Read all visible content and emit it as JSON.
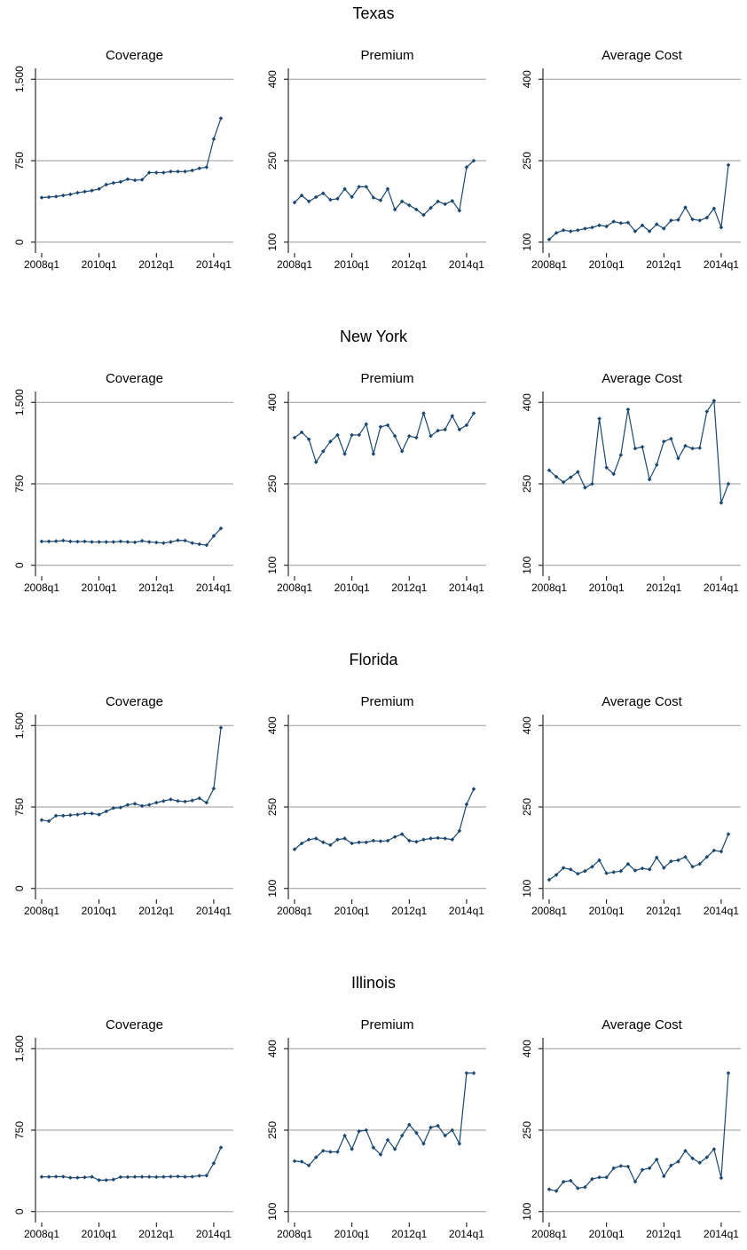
{
  "chart_data": [
    {
      "type": "line",
      "suptitle": "Texas",
      "title": "Coverage",
      "color": "#1a476f",
      "x": [
        "2008q1",
        "2008q2",
        "2008q3",
        "2008q4",
        "2009q1",
        "2009q2",
        "2009q3",
        "2009q4",
        "2010q1",
        "2010q2",
        "2010q3",
        "2010q4",
        "2011q1",
        "2011q2",
        "2011q3",
        "2011q4",
        "2012q1",
        "2012q2",
        "2012q3",
        "2012q4",
        "2013q1",
        "2013q2",
        "2013q3",
        "2013q4",
        "2014q1",
        "2014q2"
      ],
      "values": [
        410,
        415,
        420,
        430,
        440,
        455,
        465,
        475,
        490,
        530,
        545,
        555,
        580,
        570,
        575,
        640,
        640,
        640,
        650,
        650,
        650,
        660,
        680,
        690,
        950,
        1140
      ],
      "ylim": [
        -100,
        1600
      ],
      "yticks": [
        0,
        750,
        {
          "value": 1500,
          "label": "1,500"
        }
      ],
      "xticks": [
        "2008q1",
        "2010q1",
        "2012q1",
        "2014q1"
      ],
      "grid": true
    },
    {
      "type": "line",
      "title": "Premium",
      "color": "#1a476f",
      "x": [
        "2008q1",
        "2008q2",
        "2008q3",
        "2008q4",
        "2009q1",
        "2009q2",
        "2009q3",
        "2009q4",
        "2010q1",
        "2010q2",
        "2010q3",
        "2010q4",
        "2011q1",
        "2011q2",
        "2011q3",
        "2011q4",
        "2012q1",
        "2012q2",
        "2012q3",
        "2012q4",
        "2013q1",
        "2013q2",
        "2013q3",
        "2013q4",
        "2014q1",
        "2014q2"
      ],
      "values": [
        173,
        186,
        175,
        183,
        190,
        178,
        180,
        198,
        183,
        202,
        202,
        182,
        177,
        198,
        160,
        175,
        168,
        160,
        150,
        163,
        175,
        170,
        176,
        158,
        238,
        250
      ],
      "ylim": [
        80,
        420
      ],
      "yticks": [
        100,
        250,
        400
      ],
      "xticks": [
        "2008q1",
        "2010q1",
        "2012q1",
        "2014q1"
      ],
      "grid": true
    },
    {
      "type": "line",
      "title": "Average Cost",
      "color": "#1a476f",
      "x": [
        "2008q1",
        "2008q2",
        "2008q3",
        "2008q4",
        "2009q1",
        "2009q2",
        "2009q3",
        "2009q4",
        "2010q1",
        "2010q2",
        "2010q3",
        "2010q4",
        "2011q1",
        "2011q2",
        "2011q3",
        "2011q4",
        "2012q1",
        "2012q2",
        "2012q3",
        "2012q4",
        "2013q1",
        "2013q2",
        "2013q3",
        "2013q4",
        "2014q1",
        "2014q2"
      ],
      "values": [
        105,
        117,
        122,
        120,
        122,
        125,
        127,
        131,
        129,
        138,
        135,
        136,
        120,
        131,
        120,
        133,
        125,
        140,
        141,
        164,
        142,
        140,
        145,
        162,
        127,
        242
      ],
      "ylim": [
        80,
        420
      ],
      "yticks": [
        100,
        250,
        400
      ],
      "xticks": [
        "2008q1",
        "2010q1",
        "2012q1",
        "2014q1"
      ],
      "grid": true
    },
    {
      "type": "line",
      "suptitle": "New York",
      "title": "Coverage",
      "color": "#1a476f",
      "x": [
        "2008q1",
        "2008q2",
        "2008q3",
        "2008q4",
        "2009q1",
        "2009q2",
        "2009q3",
        "2009q4",
        "2010q1",
        "2010q2",
        "2010q3",
        "2010q4",
        "2011q1",
        "2011q2",
        "2011q3",
        "2011q4",
        "2012q1",
        "2012q2",
        "2012q3",
        "2012q4",
        "2013q1",
        "2013q2",
        "2013q3",
        "2013q4",
        "2014q1",
        "2014q2"
      ],
      "values": [
        220,
        220,
        222,
        228,
        220,
        218,
        220,
        215,
        215,
        215,
        215,
        220,
        215,
        212,
        225,
        215,
        210,
        205,
        215,
        230,
        228,
        205,
        195,
        185,
        270,
        340
      ],
      "ylim": [
        -100,
        1600
      ],
      "yticks": [
        0,
        750,
        {
          "value": 1500,
          "label": "1,500"
        }
      ],
      "xticks": [
        "2008q1",
        "2010q1",
        "2012q1",
        "2014q1"
      ],
      "grid": true
    },
    {
      "type": "line",
      "title": "Premium",
      "color": "#1a476f",
      "x": [
        "2008q1",
        "2008q2",
        "2008q3",
        "2008q4",
        "2009q1",
        "2009q2",
        "2009q3",
        "2009q4",
        "2010q1",
        "2010q2",
        "2010q3",
        "2010q4",
        "2011q1",
        "2011q2",
        "2011q3",
        "2011q4",
        "2012q1",
        "2012q2",
        "2012q3",
        "2012q4",
        "2013q1",
        "2013q2",
        "2013q3",
        "2013q4",
        "2014q1",
        "2014q2"
      ],
      "values": [
        335,
        345,
        332,
        290,
        310,
        328,
        340,
        305,
        340,
        340,
        360,
        305,
        355,
        358,
        338,
        310,
        338,
        335,
        380,
        338,
        348,
        350,
        375,
        350,
        358,
        380
      ],
      "ylim": [
        80,
        420
      ],
      "yticks": [
        100,
        250,
        400
      ],
      "xticks": [
        "2008q1",
        "2010q1",
        "2012q1",
        "2014q1"
      ],
      "grid": true
    },
    {
      "type": "line",
      "title": "Average Cost",
      "color": "#1a476f",
      "x": [
        "2008q1",
        "2008q2",
        "2008q3",
        "2008q4",
        "2009q1",
        "2009q2",
        "2009q3",
        "2009q4",
        "2010q1",
        "2010q2",
        "2010q3",
        "2010q4",
        "2011q1",
        "2011q2",
        "2011q3",
        "2011q4",
        "2012q1",
        "2012q2",
        "2012q3",
        "2012q4",
        "2013q1",
        "2013q2",
        "2013q3",
        "2013q4",
        "2014q1",
        "2014q2"
      ],
      "values": [
        275,
        263,
        253,
        262,
        272,
        243,
        250,
        370,
        280,
        268,
        303,
        387,
        315,
        318,
        258,
        285,
        328,
        333,
        297,
        320,
        315,
        316,
        383,
        403,
        215,
        250
      ],
      "ylim": [
        80,
        420
      ],
      "yticks": [
        100,
        250,
        400
      ],
      "xticks": [
        "2008q1",
        "2010q1",
        "2012q1",
        "2014q1"
      ],
      "grid": true
    },
    {
      "type": "line",
      "suptitle": "Florida",
      "title": "Coverage",
      "color": "#1a476f",
      "x": [
        "2008q1",
        "2008q2",
        "2008q3",
        "2008q4",
        "2009q1",
        "2009q2",
        "2009q3",
        "2009q4",
        "2010q1",
        "2010q2",
        "2010q3",
        "2010q4",
        "2011q1",
        "2011q2",
        "2011q3",
        "2011q4",
        "2012q1",
        "2012q2",
        "2012q3",
        "2012q4",
        "2013q1",
        "2013q2",
        "2013q3",
        "2013q4",
        "2014q1",
        "2014q2"
      ],
      "values": [
        630,
        620,
        670,
        670,
        675,
        680,
        690,
        690,
        680,
        710,
        740,
        745,
        770,
        780,
        760,
        770,
        790,
        805,
        820,
        805,
        800,
        810,
        830,
        790,
        920,
        1480
      ],
      "ylim": [
        -100,
        1600
      ],
      "yticks": [
        0,
        750,
        {
          "value": 1500,
          "label": "1,500"
        }
      ],
      "xticks": [
        "2008q1",
        "2010q1",
        "2012q1",
        "2014q1"
      ],
      "grid": true
    },
    {
      "type": "line",
      "title": "Premium",
      "color": "#1a476f",
      "x": [
        "2008q1",
        "2008q2",
        "2008q3",
        "2008q4",
        "2009q1",
        "2009q2",
        "2009q3",
        "2009q4",
        "2010q1",
        "2010q2",
        "2010q3",
        "2010q4",
        "2011q1",
        "2011q2",
        "2011q3",
        "2011q4",
        "2012q1",
        "2012q2",
        "2012q3",
        "2012q4",
        "2013q1",
        "2013q2",
        "2013q3",
        "2013q4",
        "2014q1",
        "2014q2"
      ],
      "values": [
        172,
        183,
        190,
        192,
        185,
        180,
        190,
        192,
        183,
        185,
        185,
        188,
        187,
        188,
        195,
        200,
        188,
        186,
        190,
        192,
        193,
        192,
        190,
        206,
        255,
        283
      ],
      "ylim": [
        80,
        420
      ],
      "yticks": [
        100,
        250,
        400
      ],
      "xticks": [
        "2008q1",
        "2010q1",
        "2012q1",
        "2014q1"
      ],
      "grid": true
    },
    {
      "type": "line",
      "title": "Average Cost",
      "color": "#1a476f",
      "x": [
        "2008q1",
        "2008q2",
        "2008q3",
        "2008q4",
        "2009q1",
        "2009q2",
        "2009q3",
        "2009q4",
        "2010q1",
        "2010q2",
        "2010q3",
        "2010q4",
        "2011q1",
        "2011q2",
        "2011q3",
        "2011q4",
        "2012q1",
        "2012q2",
        "2012q3",
        "2012q4",
        "2013q1",
        "2013q2",
        "2013q3",
        "2013q4",
        "2014q1",
        "2014q2"
      ],
      "values": [
        116,
        125,
        138,
        135,
        127,
        132,
        140,
        152,
        128,
        130,
        132,
        145,
        133,
        137,
        135,
        157,
        138,
        150,
        152,
        158,
        140,
        145,
        158,
        170,
        168,
        200
      ],
      "ylim": [
        80,
        420
      ],
      "yticks": [
        100,
        250,
        400
      ],
      "xticks": [
        "2008q1",
        "2010q1",
        "2012q1",
        "2014q1"
      ],
      "grid": true
    },
    {
      "type": "line",
      "suptitle": "Illinois",
      "title": "Coverage",
      "color": "#1a476f",
      "x": [
        "2008q1",
        "2008q2",
        "2008q3",
        "2008q4",
        "2009q1",
        "2009q2",
        "2009q3",
        "2009q4",
        "2010q1",
        "2010q2",
        "2010q3",
        "2010q4",
        "2011q1",
        "2011q2",
        "2011q3",
        "2011q4",
        "2012q1",
        "2012q2",
        "2012q3",
        "2012q4",
        "2013q1",
        "2013q2",
        "2013q3",
        "2013q4",
        "2014q1",
        "2014q2"
      ],
      "values": [
        320,
        320,
        322,
        322,
        312,
        312,
        315,
        320,
        290,
        290,
        295,
        318,
        318,
        320,
        320,
        320,
        318,
        320,
        322,
        324,
        320,
        322,
        330,
        332,
        445,
        590
      ],
      "ylim": [
        -100,
        1600
      ],
      "yticks": [
        0,
        750,
        {
          "value": 1500,
          "label": "1,500"
        }
      ],
      "xticks": [
        "2008q1",
        "2010q1",
        "2012q1",
        "2014q1"
      ],
      "grid": true
    },
    {
      "type": "line",
      "title": "Premium",
      "color": "#1a476f",
      "x": [
        "2008q1",
        "2008q2",
        "2008q3",
        "2008q4",
        "2009q1",
        "2009q2",
        "2009q3",
        "2009q4",
        "2010q1",
        "2010q2",
        "2010q3",
        "2010q4",
        "2011q1",
        "2011q2",
        "2011q3",
        "2011q4",
        "2012q1",
        "2012q2",
        "2012q3",
        "2012q4",
        "2013q1",
        "2013q2",
        "2013q3",
        "2013q4",
        "2014q1",
        "2014q2"
      ],
      "values": [
        193,
        192,
        185,
        200,
        212,
        210,
        210,
        240,
        215,
        248,
        250,
        218,
        205,
        232,
        215,
        240,
        260,
        245,
        225,
        255,
        258,
        240,
        250,
        225,
        355,
        355
      ],
      "ylim": [
        80,
        420
      ],
      "yticks": [
        100,
        250,
        400
      ],
      "xticks": [
        "2008q1",
        "2010q1",
        "2012q1",
        "2014q1"
      ],
      "grid": true
    },
    {
      "type": "line",
      "title": "Average Cost",
      "color": "#1a476f",
      "x": [
        "2008q1",
        "2008q2",
        "2008q3",
        "2008q4",
        "2009q1",
        "2009q2",
        "2009q3",
        "2009q4",
        "2010q1",
        "2010q2",
        "2010q3",
        "2010q4",
        "2011q1",
        "2011q2",
        "2011q3",
        "2011q4",
        "2012q1",
        "2012q2",
        "2012q3",
        "2012q4",
        "2013q1",
        "2013q2",
        "2013q3",
        "2013q4",
        "2014q1",
        "2014q2"
      ],
      "values": [
        141,
        138,
        155,
        157,
        143,
        145,
        160,
        163,
        163,
        180,
        184,
        183,
        155,
        177,
        180,
        196,
        165,
        185,
        192,
        212,
        198,
        190,
        200,
        215,
        162,
        355
      ],
      "ylim": [
        80,
        420
      ],
      "yticks": [
        100,
        250,
        400
      ],
      "xticks": [
        "2008q1",
        "2010q1",
        "2012q1",
        "2014q1"
      ],
      "grid": true
    }
  ]
}
